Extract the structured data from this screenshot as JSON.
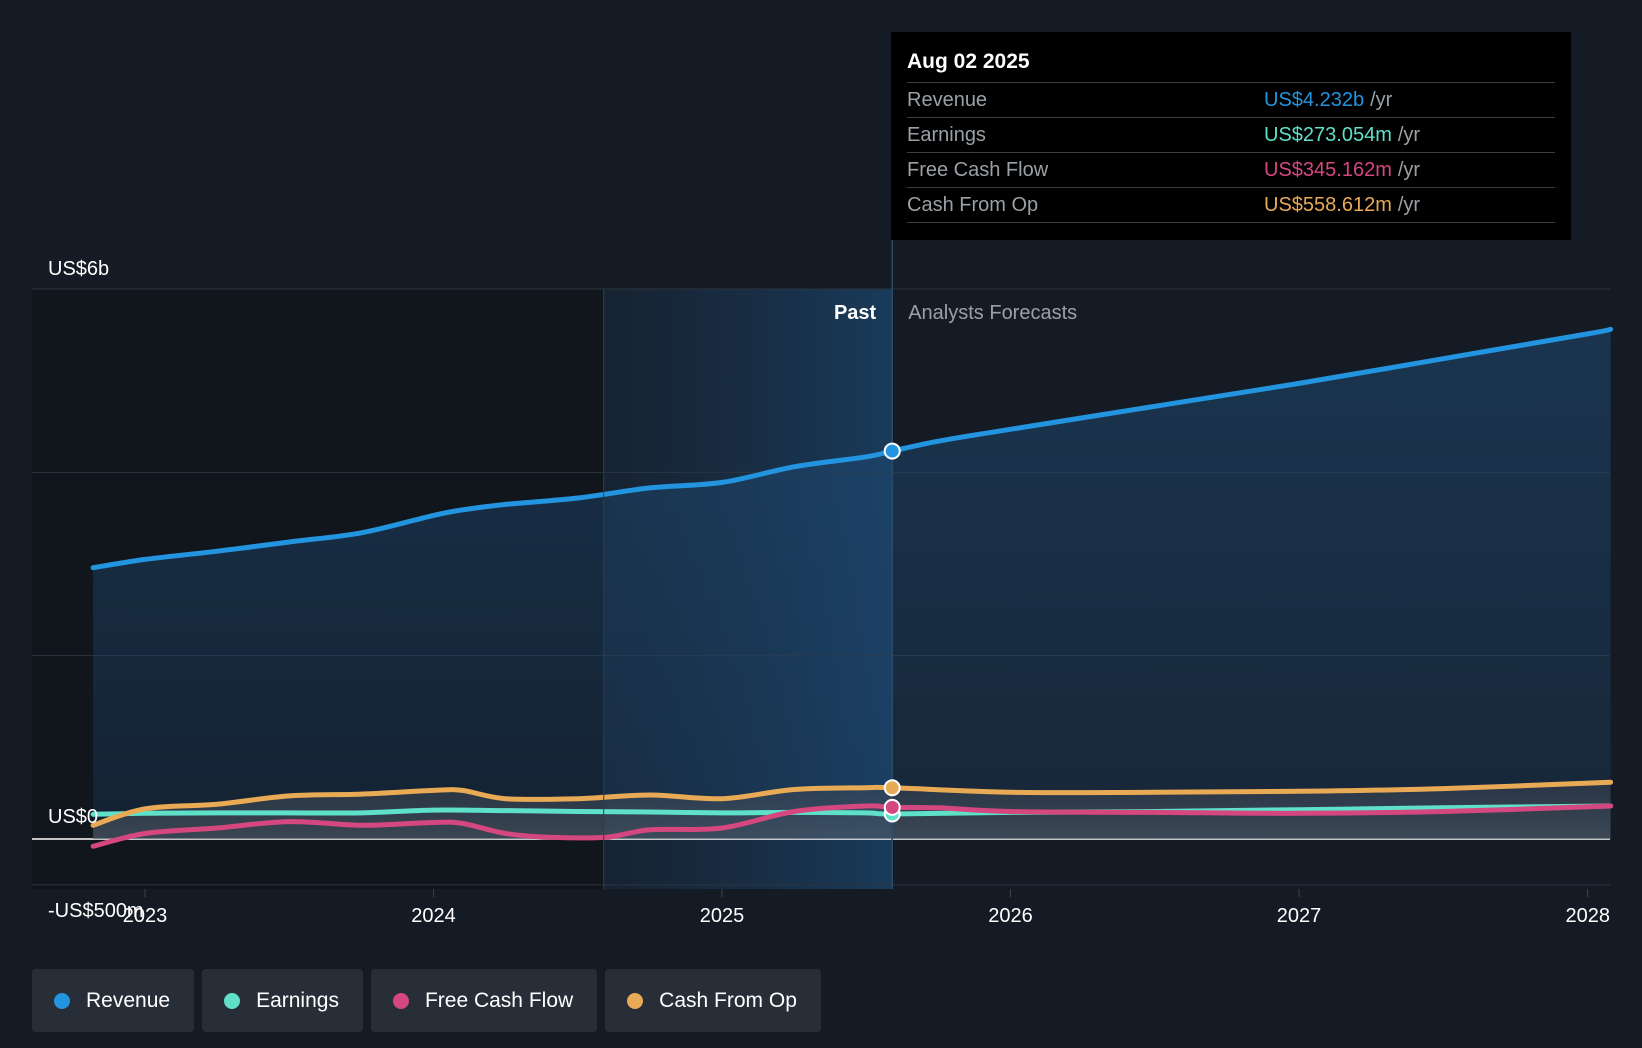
{
  "colors": {
    "revenue": "#2394df",
    "earnings": "#5fe0c9",
    "fcf": "#d5477f",
    "cfo": "#e9aa55",
    "background": "#151b24"
  },
  "tooltip": {
    "date": "Aug 02 2025",
    "unit": "/yr",
    "rows": [
      {
        "label": "Revenue",
        "value": "US$4.232b",
        "color": "#2394df"
      },
      {
        "label": "Earnings",
        "value": "US$273.054m",
        "color": "#5fe0c9"
      },
      {
        "label": "Free Cash Flow",
        "value": "US$345.162m",
        "color": "#d5477f"
      },
      {
        "label": "Cash From Op",
        "value": "US$558.612m",
        "color": "#e9aa55"
      }
    ]
  },
  "legend": [
    {
      "label": "Revenue",
      "color": "#2394df",
      "icon": "revenue-dot-icon"
    },
    {
      "label": "Earnings",
      "color": "#5fe0c9",
      "icon": "earnings-dot-icon"
    },
    {
      "label": "Free Cash Flow",
      "color": "#d5477f",
      "icon": "fcf-dot-icon"
    },
    {
      "label": "Cash From Op",
      "color": "#e9aa55",
      "icon": "cfo-dot-icon"
    }
  ],
  "chart_data": {
    "type": "line",
    "title": "",
    "xlabel": "",
    "ylabel": "",
    "xlim": [
      2022.8,
      2028.05
    ],
    "ylim": [
      -500,
      6000
    ],
    "y_tick_labels": [
      {
        "value": 6000,
        "label": "US$6b"
      },
      {
        "value": 0,
        "label": "US$0"
      },
      {
        "value": -500,
        "label": "-US$500m"
      }
    ],
    "gridlines": [
      6000,
      4000,
      2000,
      0,
      -500
    ],
    "x_ticks": [
      2023,
      2024,
      2025,
      2026,
      2027,
      2028
    ],
    "x_tick_labels": [
      "2023",
      "2024",
      "2025",
      "2026",
      "2027",
      "2028"
    ],
    "past_label": "Past",
    "forecast_label": "Analysts Forecasts",
    "past_end": 2025.59,
    "highlight_start": 2024.59,
    "series": [
      {
        "name": "Revenue",
        "key": "revenue",
        "area": true,
        "x": [
          2022.82,
          2023.0,
          2023.25,
          2023.5,
          2023.75,
          2024.0,
          2024.1,
          2024.25,
          2024.5,
          2024.75,
          2025.0,
          2025.25,
          2025.5,
          2025.59,
          2025.75,
          2026.0,
          2026.5,
          2027.0,
          2027.5,
          2028.0,
          2028.08
        ],
        "values": [
          2960,
          3050,
          3140,
          3240,
          3340,
          3530,
          3590,
          3650,
          3720,
          3830,
          3890,
          4060,
          4170,
          4232,
          4340,
          4470,
          4720,
          4970,
          5240,
          5510,
          5560
        ]
      },
      {
        "name": "Earnings",
        "key": "earnings",
        "area": false,
        "x": [
          2022.82,
          2023.0,
          2023.25,
          2023.5,
          2023.75,
          2024.0,
          2024.25,
          2024.5,
          2024.75,
          2025.0,
          2025.25,
          2025.5,
          2025.59,
          2026.0,
          2026.5,
          2027.0,
          2027.5,
          2028.08
        ],
        "values": [
          270,
          280,
          285,
          285,
          285,
          315,
          310,
          300,
          295,
          285,
          290,
          285,
          273,
          290,
          300,
          320,
          340,
          360
        ]
      },
      {
        "name": "Free Cash Flow",
        "key": "fcf",
        "area": false,
        "x": [
          2022.82,
          2023.0,
          2023.25,
          2023.5,
          2023.75,
          2024.0,
          2024.1,
          2024.25,
          2024.4,
          2024.6,
          2024.75,
          2025.0,
          2025.25,
          2025.5,
          2025.59,
          2025.75,
          2026.0,
          2026.5,
          2027.0,
          2027.5,
          2028.08
        ],
        "values": [
          -80,
          60,
          120,
          190,
          150,
          180,
          170,
          60,
          20,
          20,
          100,
          120,
          300,
          360,
          345,
          340,
          300,
          290,
          280,
          300,
          360
        ]
      },
      {
        "name": "Cash From Op",
        "key": "cfo",
        "area": false,
        "x": [
          2022.82,
          2023.0,
          2023.25,
          2023.5,
          2023.75,
          2024.0,
          2024.1,
          2024.25,
          2024.5,
          2024.75,
          2025.0,
          2025.25,
          2025.5,
          2025.59,
          2026.0,
          2026.5,
          2027.0,
          2027.5,
          2028.08
        ],
        "values": [
          150,
          330,
          380,
          470,
          490,
          530,
          530,
          440,
          440,
          480,
          440,
          540,
          560,
          559,
          510,
          510,
          520,
          550,
          620
        ]
      }
    ],
    "tooltip_x": 2025.59
  }
}
